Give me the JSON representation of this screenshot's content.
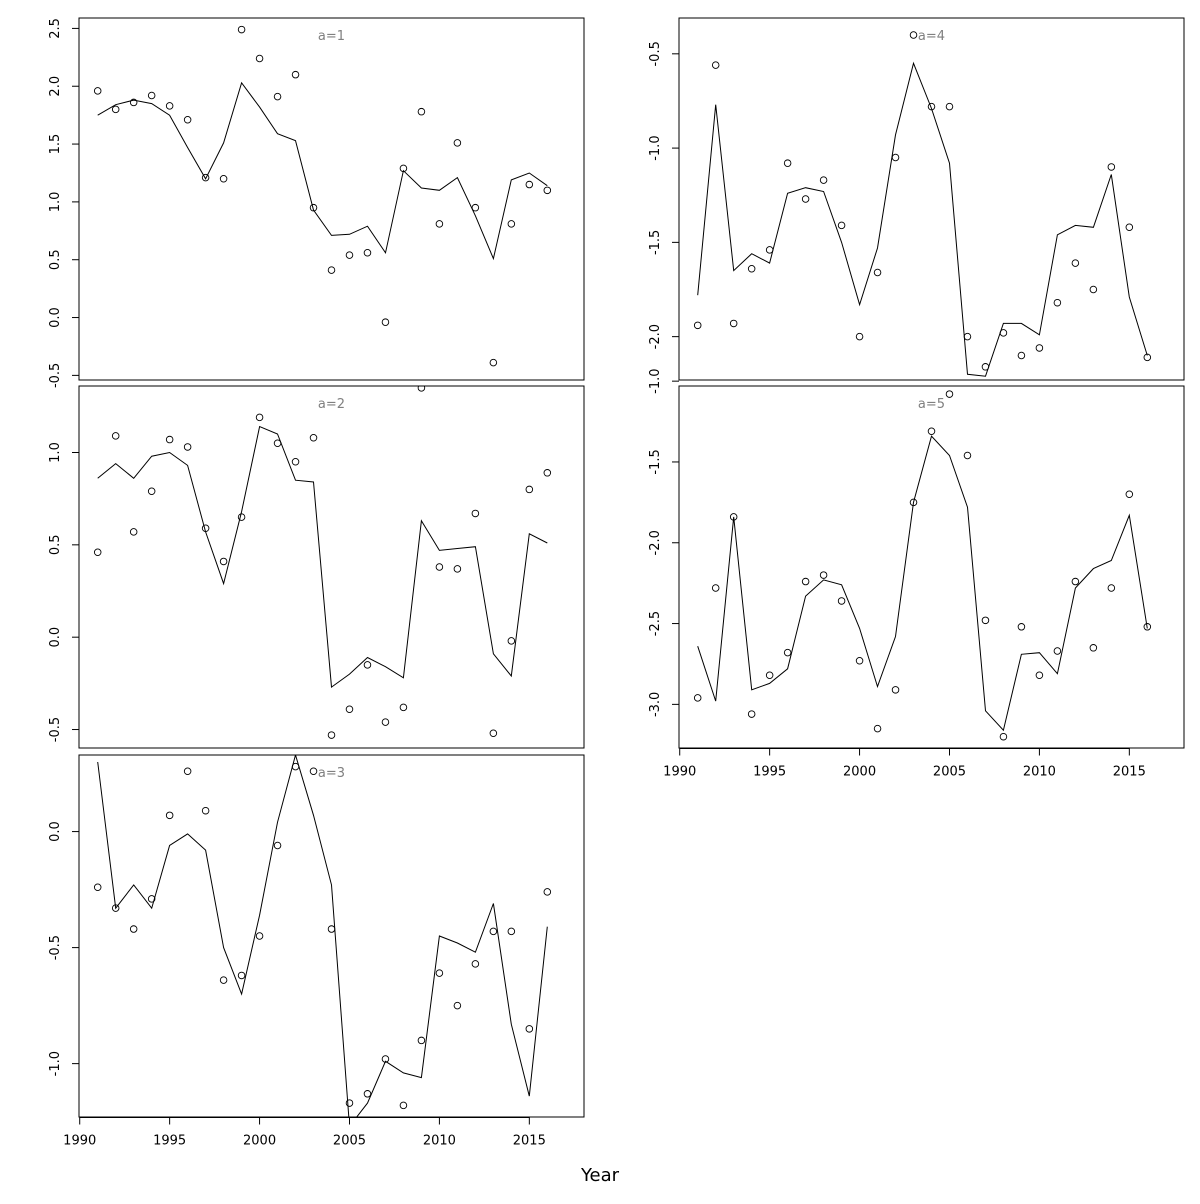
{
  "chart_data": {
    "type": "line",
    "xlabel": "Year",
    "legend": "none",
    "grid": false,
    "years": [
      1991,
      1992,
      1993,
      1994,
      1995,
      1996,
      1997,
      1998,
      1999,
      2000,
      2001,
      2002,
      2003,
      2004,
      2005,
      2006,
      2007,
      2008,
      2009,
      2010,
      2011,
      2012,
      2013,
      2014,
      2015,
      2016
    ],
    "x_ticks": [
      1990,
      1995,
      2000,
      2005,
      2010,
      2015
    ],
    "x_tick_labels": [
      "1990",
      "1995",
      "2000",
      "2005",
      "2010",
      "2015"
    ],
    "xlim": [
      1989.96,
      2018.04
    ],
    "panels": [
      {
        "label": "a=1",
        "ylim": [
          -0.54,
          2.59
        ],
        "y_ticks": [
          -0.5,
          0.0,
          0.5,
          1.0,
          1.5,
          2.0,
          2.5
        ],
        "y_tick_labels": [
          "-0.5",
          "0.0",
          "0.5",
          "1.0",
          "1.5",
          "2.0",
          "2.5"
        ],
        "series": [
          {
            "kind": "line",
            "values": [
              1.75,
              1.84,
              1.88,
              1.85,
              1.75,
              1.47,
              1.2,
              1.51,
              2.03,
              1.82,
              1.59,
              1.53,
              0.93,
              0.71,
              0.72,
              0.79,
              0.56,
              1.27,
              1.12,
              1.1,
              1.21,
              0.88,
              0.51,
              1.19,
              1.25,
              1.14
            ]
          },
          {
            "kind": "points",
            "values": [
              1.96,
              1.8,
              1.86,
              1.92,
              1.83,
              1.71,
              1.21,
              1.2,
              2.49,
              2.24,
              1.91,
              2.1,
              0.95,
              0.41,
              0.54,
              0.56,
              -0.04,
              1.29,
              1.78,
              0.81,
              1.51,
              0.95,
              -0.39,
              0.81,
              1.15,
              1.1
            ]
          }
        ]
      },
      {
        "label": "a=2",
        "ylim": [
          -0.6,
          1.36
        ],
        "y_ticks": [
          -0.5,
          0.0,
          0.5,
          1.0
        ],
        "y_tick_labels": [
          "-0.5",
          "0.0",
          "0.5",
          "1.0"
        ],
        "series": [
          {
            "kind": "line",
            "values": [
              0.86,
              0.94,
              0.86,
              0.98,
              1.0,
              0.93,
              0.57,
              0.29,
              0.68,
              1.14,
              1.1,
              0.85,
              0.84,
              -0.27,
              -0.2,
              -0.11,
              -0.16,
              -0.22,
              0.63,
              0.47,
              0.48,
              0.49,
              -0.09,
              -0.21,
              0.56,
              0.51
            ]
          },
          {
            "kind": "points",
            "values": [
              0.46,
              1.09,
              0.57,
              0.79,
              1.07,
              1.03,
              0.59,
              0.41,
              0.65,
              1.19,
              1.05,
              0.95,
              1.08,
              -0.53,
              -0.39,
              -0.15,
              -0.46,
              -0.38,
              1.35,
              0.38,
              0.37,
              0.67,
              -0.52,
              -0.02,
              0.8,
              0.89
            ]
          }
        ]
      },
      {
        "label": "a=3",
        "ylim": [
          -1.23,
          0.33
        ],
        "y_ticks": [
          -1.0,
          -0.5,
          0.0
        ],
        "y_tick_labels": [
          "-1.0",
          "-0.5",
          "0.0"
        ],
        "series": [
          {
            "kind": "line",
            "values": [
              0.3,
              -0.33,
              -0.23,
              -0.33,
              -0.06,
              -0.01,
              -0.08,
              -0.5,
              -0.7,
              -0.36,
              0.04,
              0.33,
              0.07,
              -0.23,
              -1.27,
              -1.17,
              -0.99,
              -1.04,
              -1.06,
              -0.45,
              -0.48,
              -0.52,
              -0.31,
              -0.83,
              -1.14,
              -0.41
            ]
          },
          {
            "kind": "points",
            "values": [
              -0.24,
              -0.33,
              -0.42,
              -0.29,
              0.07,
              0.26,
              0.09,
              -0.64,
              -0.62,
              -0.45,
              -0.06,
              0.28,
              0.26,
              -0.42,
              -1.17,
              -1.13,
              -0.98,
              -1.18,
              -0.9,
              -0.61,
              -0.75,
              -0.57,
              -0.43,
              -0.43,
              -0.85,
              -0.26
            ]
          }
        ]
      },
      {
        "label": "a=4",
        "ylim": [
          -2.23,
          -0.31
        ],
        "y_ticks": [
          -2.0,
          -1.5,
          -1.0,
          -0.5
        ],
        "y_tick_labels": [
          "-2.0",
          "-1.5",
          "-1.0",
          "-0.5"
        ],
        "series": [
          {
            "kind": "line",
            "values": [
              -1.78,
              -0.77,
              -1.65,
              -1.56,
              -1.61,
              -1.24,
              -1.21,
              -1.23,
              -1.5,
              -1.83,
              -1.53,
              -0.93,
              -0.55,
              -0.79,
              -1.08,
              -2.2,
              -2.21,
              -1.93,
              -1.93,
              -1.99,
              -1.46,
              -1.41,
              -1.42,
              -1.14,
              -1.79,
              -2.1
            ]
          },
          {
            "kind": "points",
            "values": [
              -1.94,
              -0.56,
              -1.93,
              -1.64,
              -1.54,
              -1.08,
              -1.27,
              -1.17,
              -1.41,
              -2.0,
              -1.66,
              -1.05,
              -0.4,
              -0.78,
              -0.78,
              -2.0,
              -2.16,
              -1.98,
              -2.1,
              -2.06,
              -1.82,
              -1.61,
              -1.75,
              -1.1,
              -1.42,
              -2.11
            ]
          }
        ]
      },
      {
        "label": "a=5",
        "ylim": [
          -3.27,
          -1.03
        ],
        "y_ticks": [
          -3.0,
          -2.5,
          -2.0,
          -1.5,
          -1.0
        ],
        "y_tick_labels": [
          "-3.0",
          "-2.5",
          "-2.0",
          "-1.5",
          "-1.0"
        ],
        "series": [
          {
            "kind": "line",
            "values": [
              -2.64,
              -2.98,
              -1.84,
              -2.91,
              -2.87,
              -2.78,
              -2.33,
              -2.23,
              -2.26,
              -2.53,
              -2.89,
              -2.58,
              -1.75,
              -1.34,
              -1.46,
              -1.78,
              -3.04,
              -3.16,
              -2.69,
              -2.68,
              -2.81,
              -2.28,
              -2.16,
              -2.11,
              -1.83,
              -2.53
            ]
          },
          {
            "kind": "points",
            "values": [
              -2.96,
              -2.28,
              -1.84,
              -3.06,
              -2.82,
              -2.68,
              -2.24,
              -2.2,
              -2.36,
              -2.73,
              -3.15,
              -2.91,
              -1.75,
              -1.31,
              -1.08,
              -1.46,
              -2.48,
              -3.2,
              -2.52,
              -2.82,
              -2.67,
              -2.24,
              -2.65,
              -2.28,
              -1.7,
              -2.52
            ]
          }
        ]
      }
    ]
  }
}
